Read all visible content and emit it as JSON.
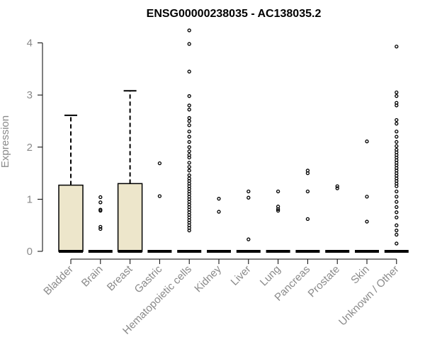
{
  "chart_data": {
    "type": "box",
    "title": "ENSG00000238035 - AC138035.2",
    "xlabel": "",
    "ylabel": "Expression",
    "ylim": [
      0,
      4.3
    ],
    "yticks": [
      0,
      1,
      2,
      3,
      4
    ],
    "grid": false,
    "categories": [
      "Bladder",
      "Brain",
      "Breast",
      "Gastric",
      "Hematopoietic cells",
      "Kidney",
      "Liver",
      "Lung",
      "Pancreas",
      "Prostate",
      "Skin",
      "Unknown / Other"
    ],
    "boxes": [
      {
        "category": "Bladder",
        "q1": 0,
        "median": 0,
        "q3": 1.27,
        "whisker_low": 0,
        "whisker_high": 2.61,
        "outliers": []
      },
      {
        "category": "Brain",
        "q1": 0,
        "median": 0,
        "q3": 0,
        "whisker_low": 0,
        "whisker_high": 0,
        "outliers": [
          1.04,
          0.94,
          0.8,
          0.78,
          0.47,
          0.43
        ]
      },
      {
        "category": "Breast",
        "q1": 0,
        "median": 0,
        "q3": 1.3,
        "whisker_low": 0,
        "whisker_high": 3.08,
        "outliers": []
      },
      {
        "category": "Gastric",
        "q1": 0,
        "median": 0,
        "q3": 0,
        "whisker_low": 0,
        "whisker_high": 0,
        "outliers": [
          1.69,
          1.06
        ]
      },
      {
        "category": "Hematopoietic cells",
        "q1": 0,
        "median": 0,
        "q3": 0,
        "whisker_low": 0,
        "whisker_high": 0,
        "outliers": [
          4.24,
          3.98,
          3.45,
          2.98,
          2.8,
          2.72,
          2.56,
          2.5,
          2.42,
          2.3,
          2.2,
          2.1,
          2.0,
          1.92,
          1.85,
          1.8,
          1.7,
          1.62,
          1.55,
          1.46,
          1.4,
          1.35,
          1.3,
          1.25,
          1.2,
          1.15,
          1.1,
          1.05,
          1.0,
          0.95,
          0.9,
          0.85,
          0.8,
          0.75,
          0.7,
          0.65,
          0.6,
          0.55,
          0.5,
          0.45,
          0.4
        ]
      },
      {
        "category": "Kidney",
        "q1": 0,
        "median": 0,
        "q3": 0,
        "whisker_low": 0,
        "whisker_high": 0,
        "outliers": [
          1.01,
          0.76
        ]
      },
      {
        "category": "Liver",
        "q1": 0,
        "median": 0,
        "q3": 0,
        "whisker_low": 0,
        "whisker_high": 0,
        "outliers": [
          1.15,
          1.03,
          0.23
        ]
      },
      {
        "category": "Lung",
        "q1": 0,
        "median": 0,
        "q3": 0,
        "whisker_low": 0,
        "whisker_high": 0,
        "outliers": [
          1.15,
          0.86,
          0.81,
          0.78
        ]
      },
      {
        "category": "Pancreas",
        "q1": 0,
        "median": 0,
        "q3": 0,
        "whisker_low": 0,
        "whisker_high": 0,
        "outliers": [
          1.55,
          1.5,
          1.15,
          0.62
        ]
      },
      {
        "category": "Prostate",
        "q1": 0,
        "median": 0,
        "q3": 0,
        "whisker_low": 0,
        "whisker_high": 0,
        "outliers": [
          1.25,
          1.21
        ]
      },
      {
        "category": "Skin",
        "q1": 0,
        "median": 0,
        "q3": 0,
        "whisker_low": 0,
        "whisker_high": 0,
        "outliers": [
          2.11,
          1.05,
          0.57
        ]
      },
      {
        "category": "Unknown / Other",
        "q1": 0,
        "median": 0,
        "q3": 0,
        "whisker_low": 0,
        "whisker_high": 0,
        "outliers": [
          3.93,
          3.05,
          2.98,
          2.85,
          2.8,
          2.52,
          2.45,
          2.3,
          2.2,
          2.1,
          2.02,
          1.95,
          1.9,
          1.85,
          1.8,
          1.75,
          1.7,
          1.65,
          1.6,
          1.55,
          1.5,
          1.45,
          1.4,
          1.35,
          1.3,
          1.25,
          1.15,
          1.05,
          0.95,
          0.85,
          0.75,
          0.65,
          0.5,
          0.4,
          0.32,
          0.15
        ]
      }
    ],
    "colors": {
      "box_fill": "#ede6cb",
      "outline": "#000000",
      "text": "#8a8a8a",
      "title": "#000000"
    }
  }
}
